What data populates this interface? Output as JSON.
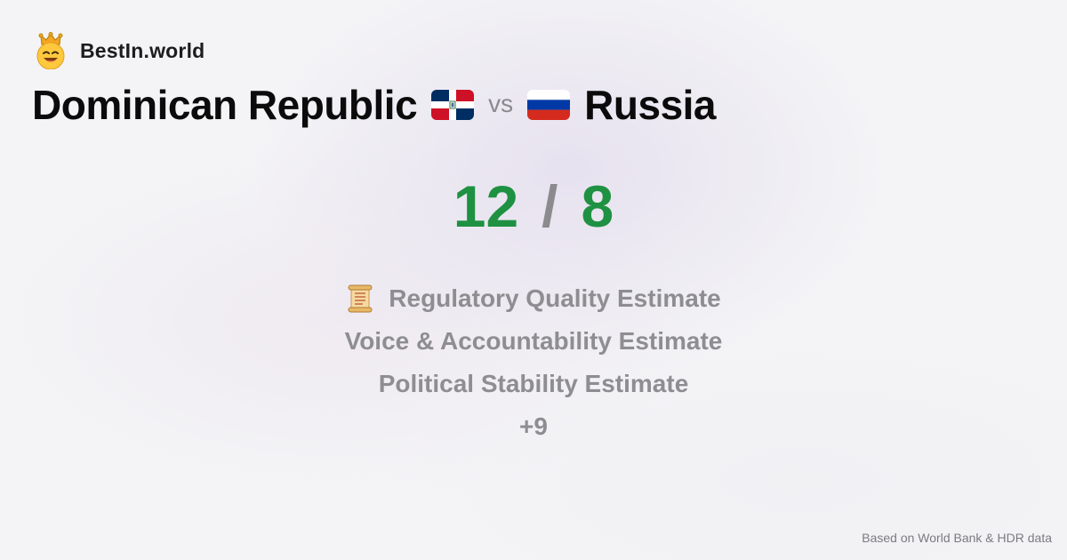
{
  "brand": {
    "name": "BestIn.world",
    "logo_icon": "crown-smiley-icon"
  },
  "comparison": {
    "left_country": "Dominican Republic",
    "left_flag": "dominican-republic-flag-icon",
    "vs_label": "vs",
    "right_country": "Russia",
    "right_flag": "russia-flag-icon"
  },
  "score": {
    "left": "12",
    "separator": "/",
    "right": "8",
    "color": "#1f9142"
  },
  "criteria": {
    "icon": "scroll-icon",
    "items": [
      "Regulatory Quality Estimate",
      "Voice & Accountability Estimate",
      "Political Stability Estimate"
    ],
    "more": "+9"
  },
  "footer": {
    "source": "Based on World Bank & HDR data"
  }
}
